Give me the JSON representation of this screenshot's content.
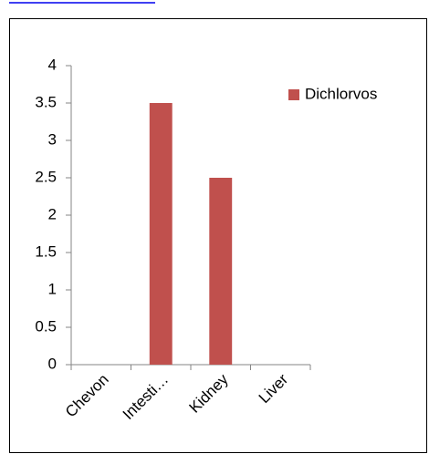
{
  "chart_data": {
    "type": "bar",
    "categories": [
      "Chevon",
      "Intesti…",
      "Kidney",
      "Liver"
    ],
    "series": [
      {
        "name": "Dichlorvos",
        "color": "#c0504d",
        "values": [
          0,
          3.5,
          2.5,
          0
        ]
      }
    ],
    "ylim": [
      0,
      4
    ],
    "yticks": [
      0,
      0.5,
      1,
      1.5,
      2,
      2.5,
      3,
      3.5,
      4
    ],
    "legend": "right",
    "grid": false
  }
}
